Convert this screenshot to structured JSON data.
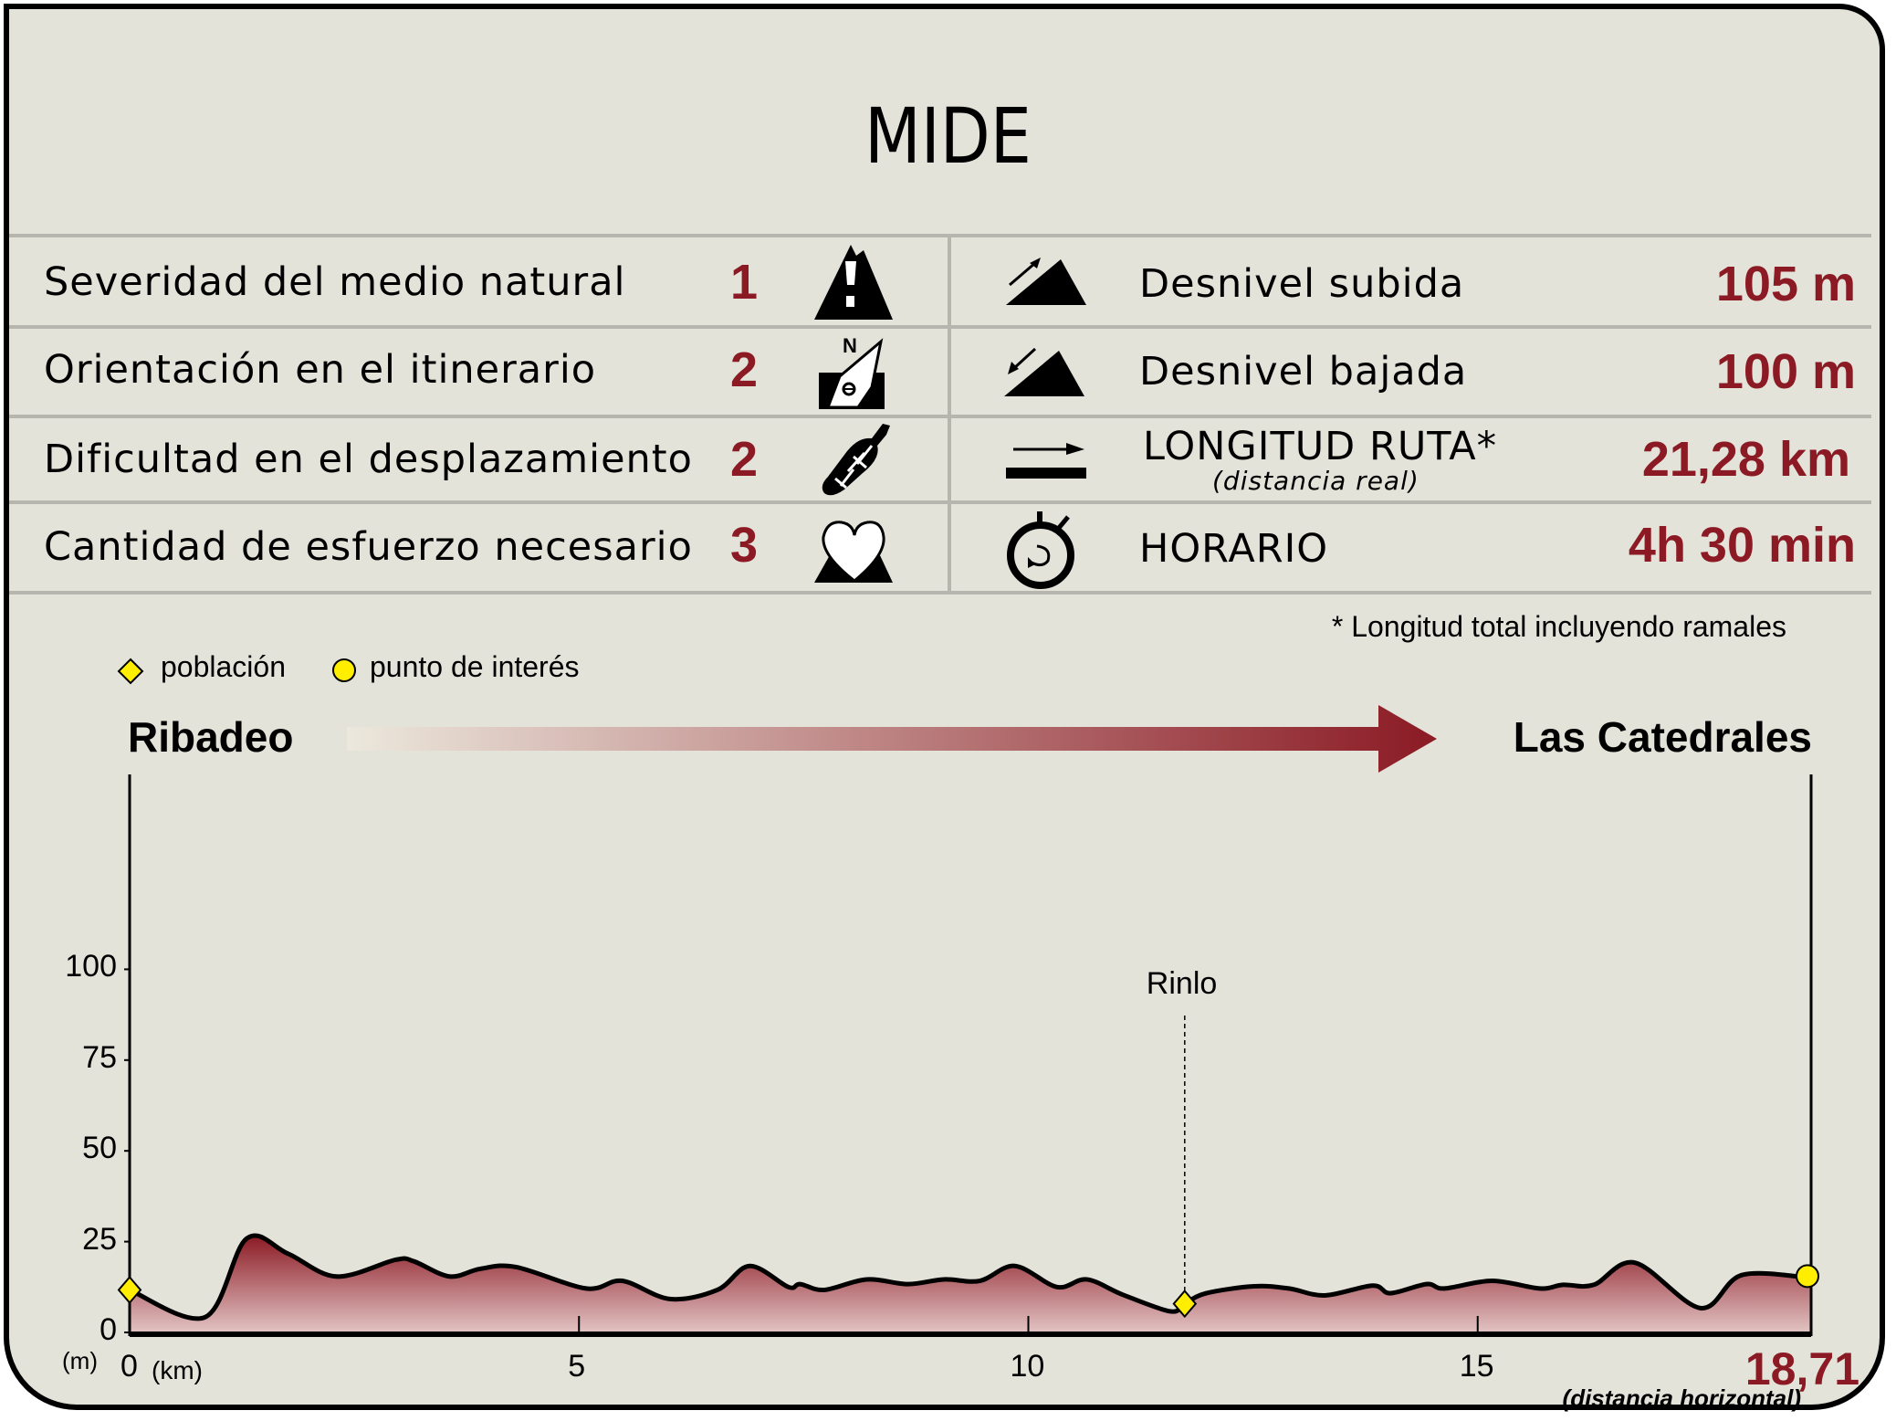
{
  "title": "MIDE",
  "mide": [
    {
      "label": "Severidad del medio natural",
      "value": "1",
      "icon": "mountain-warning-icon"
    },
    {
      "label": "Orientación en el itinerario",
      "value": "2",
      "icon": "compass-north-icon"
    },
    {
      "label": "Dificultad en el desplazamiento",
      "value": "2",
      "icon": "footprint-icon"
    },
    {
      "label": "Cantidad de esfuerzo necesario",
      "value": "3",
      "icon": "heart-mountain-icon"
    }
  ],
  "stats": [
    {
      "label": "Desnivel subida",
      "value": "105 m",
      "icon": "ascent-icon"
    },
    {
      "label": "Desnivel bajada",
      "value": "100 m",
      "icon": "descent-icon"
    },
    {
      "label": "LONGITUD RUTA*",
      "sublabel": "(distancia real)",
      "value": "21,28 km",
      "icon": "distance-icon"
    },
    {
      "label": "HORARIO",
      "value": "4h 30 min",
      "icon": "stopwatch-icon"
    }
  ],
  "footnote": "* Longitud total incluyendo ramales",
  "legend": [
    {
      "label": "población",
      "marker": "diamond",
      "color": "#ffee00"
    },
    {
      "label": "punto de interés",
      "marker": "circle",
      "color": "#ffee00"
    }
  ],
  "colors": {
    "background": "#e3e3da",
    "accent": "#8b1a24",
    "rule": "#b6b6ae"
  },
  "route": {
    "start": "Ribadeo",
    "end": "Las Catedrales"
  },
  "chart_data": {
    "type": "area",
    "y_unit": "(m)",
    "x_unit": "(km)",
    "x_end_label": "18,71",
    "x_end_note": "(distancia horizontal)",
    "xlim": [
      0,
      18.71
    ],
    "ylim": [
      0,
      140
    ],
    "x_ticks": [
      "0",
      "5",
      "10",
      "15"
    ],
    "x_tick_values": [
      0,
      5,
      10,
      15
    ],
    "y_ticks": [
      "0",
      "25",
      "50",
      "75",
      "100"
    ],
    "y_tick_values": [
      0,
      25,
      50,
      75,
      100
    ],
    "profile": [
      [
        0,
        11.7
      ],
      [
        0.84,
        4.2
      ],
      [
        1.3,
        25.8
      ],
      [
        1.76,
        21.7
      ],
      [
        2.3,
        15.4
      ],
      [
        2.96,
        20
      ],
      [
        3.16,
        19.6
      ],
      [
        3.56,
        15.4
      ],
      [
        3.9,
        17.5
      ],
      [
        4.3,
        18
      ],
      [
        5.08,
        12.1
      ],
      [
        5.48,
        14.2
      ],
      [
        6.01,
        9.2
      ],
      [
        6.54,
        11.7
      ],
      [
        6.9,
        18.3
      ],
      [
        7.33,
        12.5
      ],
      [
        7.46,
        13.3
      ],
      [
        7.73,
        11.7
      ],
      [
        8.2,
        14.6
      ],
      [
        8.66,
        13.3
      ],
      [
        9.06,
        14.6
      ],
      [
        9.46,
        14.2
      ],
      [
        9.85,
        18.3
      ],
      [
        10.32,
        12.5
      ],
      [
        10.65,
        14.6
      ],
      [
        11.05,
        10.4
      ],
      [
        11.58,
        5.8
      ],
      [
        11.74,
        7.9
      ],
      [
        11.98,
        10.8
      ],
      [
        12.51,
        12.7
      ],
      [
        12.9,
        12.1
      ],
      [
        13.3,
        10.2
      ],
      [
        13.83,
        12.9
      ],
      [
        14.03,
        10.8
      ],
      [
        14.43,
        13.3
      ],
      [
        14.63,
        12.1
      ],
      [
        15.16,
        14.2
      ],
      [
        15.69,
        12.1
      ],
      [
        15.95,
        13.1
      ],
      [
        16.29,
        13.1
      ],
      [
        16.75,
        19.2
      ],
      [
        17.48,
        6.7
      ],
      [
        17.94,
        15.8
      ],
      [
        18.71,
        15
      ]
    ],
    "points": [
      {
        "name": "Ribadeo",
        "x": 0,
        "y": 11.7,
        "type": "población",
        "labeled": false
      },
      {
        "name": "Rinlo",
        "x": 11.74,
        "y": 7.9,
        "type": "población",
        "labeled": true
      },
      {
        "name": "Las Catedrales",
        "x": 18.71,
        "y": 15,
        "type": "punto de interés",
        "labeled": false
      }
    ]
  }
}
